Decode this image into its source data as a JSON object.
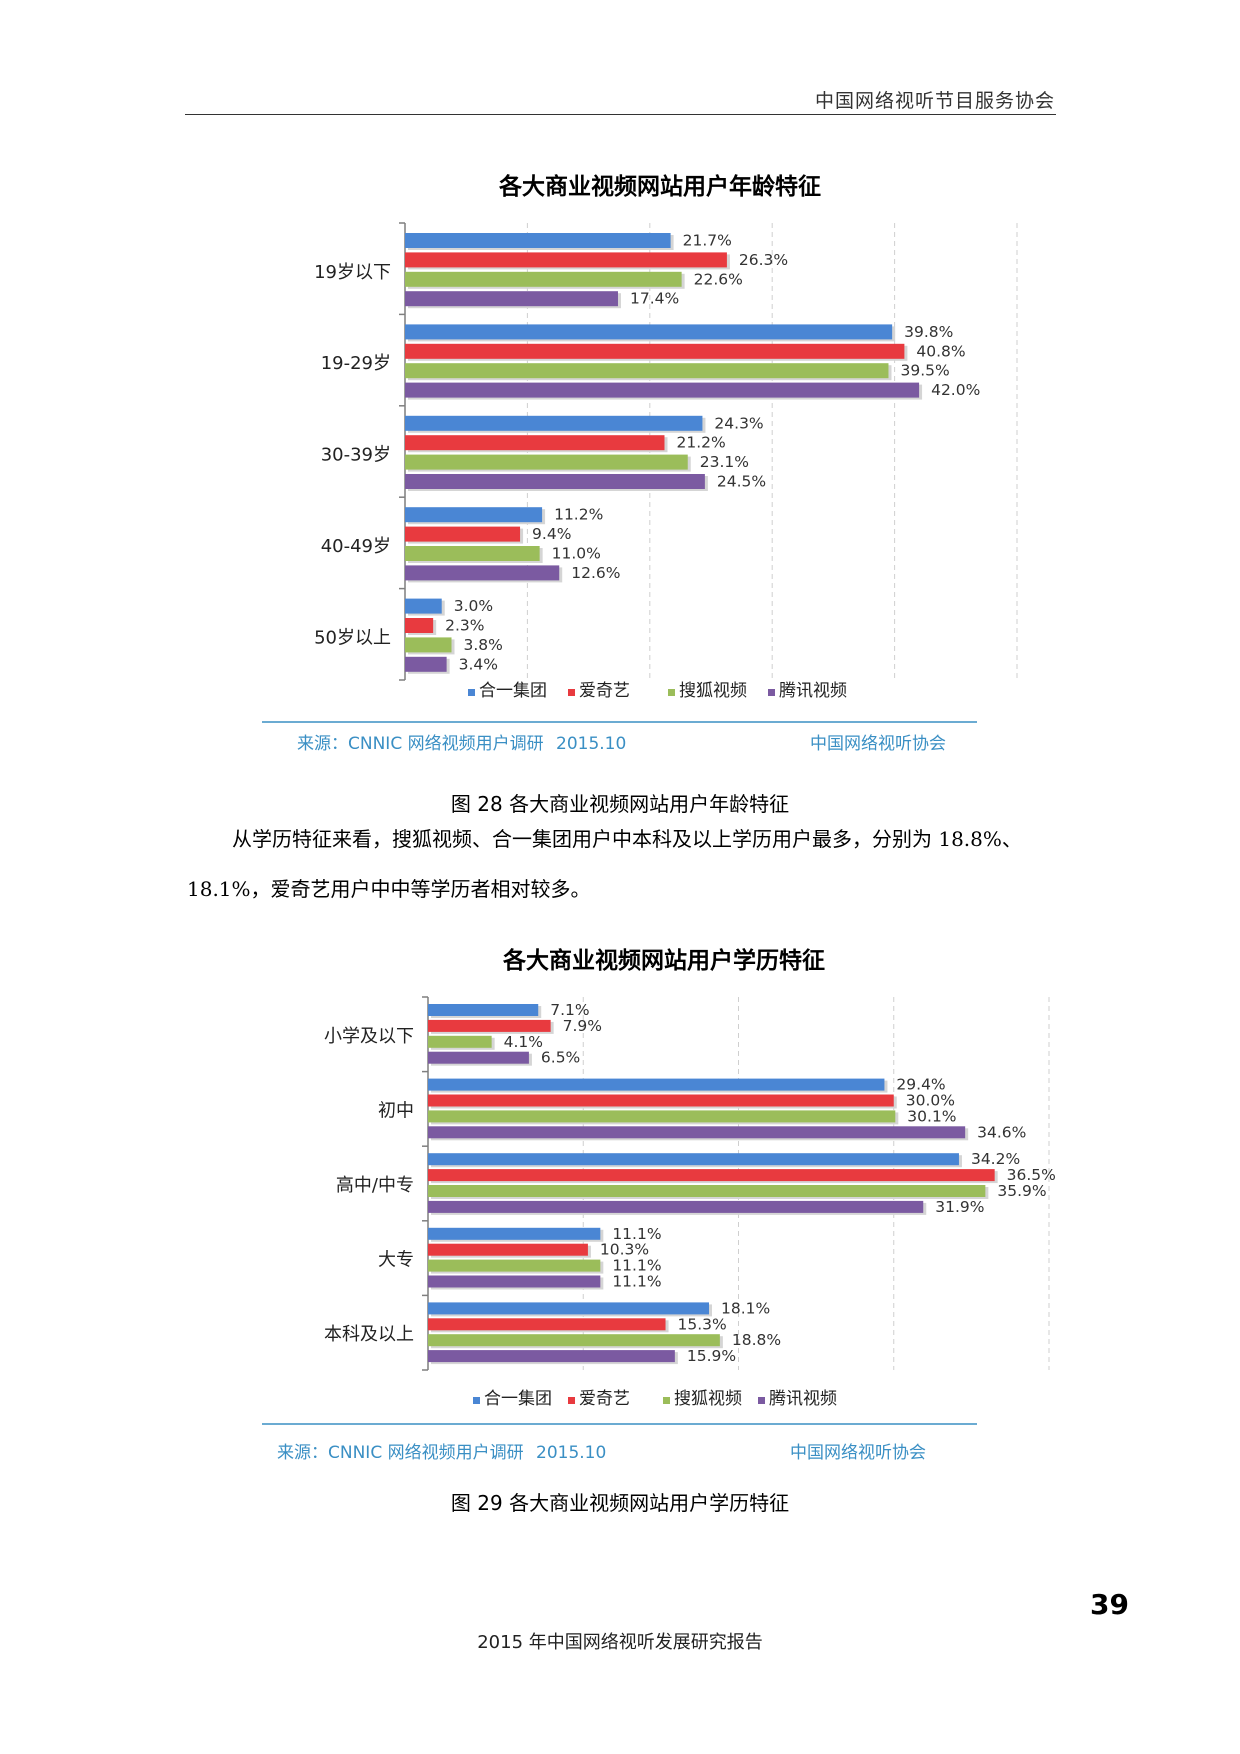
{
  "header": {
    "org": "中国网络视听节目服务协会"
  },
  "charts_meta": {
    "source_label": "来源：CNNIC 网络视频用户调研",
    "source_date": "2015.10",
    "source_org": "中国网络视听协会",
    "colors": {
      "合一集团": "#4a86d4",
      "爱奇艺": "#e83a3f",
      "搜狐视频": "#9bbd5a",
      "腾讯视频": "#7b5aa1"
    }
  },
  "chart_data": [
    {
      "type": "bar",
      "orientation": "horizontal",
      "title": "各大商业视频网站用户年龄特征",
      "categories": [
        "19岁以下",
        "19-29岁",
        "30-39岁",
        "40-49岁",
        "50岁以上"
      ],
      "series": [
        {
          "name": "合一集团",
          "values": [
            21.7,
            39.8,
            24.3,
            11.2,
            3.0
          ],
          "color": "#4a86d4"
        },
        {
          "name": "爱奇艺",
          "values": [
            26.3,
            40.8,
            21.2,
            9.4,
            2.3
          ],
          "color": "#e83a3f"
        },
        {
          "name": "搜狐视频",
          "values": [
            22.6,
            39.5,
            23.1,
            11.0,
            3.8
          ],
          "color": "#9bbd5a"
        },
        {
          "name": "腾讯视频",
          "values": [
            17.4,
            42.0,
            24.5,
            12.6,
            3.4
          ],
          "color": "#7b5aa1"
        }
      ],
      "value_labels": [
        [
          "21.7%",
          "39.8%",
          "24.3%",
          "11.2%",
          "3.0%"
        ],
        [
          "26.3%",
          "40.8%",
          "21.2%",
          "9.4%",
          "2.3%"
        ],
        [
          "22.6%",
          "39.5%",
          "23.1%",
          "11.0%",
          "3.8%"
        ],
        [
          "17.4%",
          "42.0%",
          "24.5%",
          "12.6%",
          "3.4%"
        ]
      ],
      "xlim": [
        0,
        50
      ],
      "grid": true,
      "legend": "bottom"
    },
    {
      "type": "bar",
      "orientation": "horizontal",
      "title": "各大商业视频网站用户学历特征",
      "categories": [
        "小学及以下",
        "初中",
        "高中/中专",
        "大专",
        "本科及以上"
      ],
      "series": [
        {
          "name": "合一集团",
          "values": [
            7.1,
            29.4,
            34.2,
            11.1,
            18.1
          ],
          "color": "#4a86d4"
        },
        {
          "name": "爱奇艺",
          "values": [
            7.9,
            30.0,
            36.5,
            10.3,
            15.3
          ],
          "color": "#e83a3f"
        },
        {
          "name": "搜狐视频",
          "values": [
            4.1,
            30.1,
            35.9,
            11.1,
            18.8
          ],
          "color": "#9bbd5a"
        },
        {
          "name": "腾讯视频",
          "values": [
            6.5,
            34.6,
            31.9,
            11.1,
            15.9
          ],
          "color": "#7b5aa1"
        }
      ],
      "value_labels": [
        [
          "7.1%",
          "29.4%",
          "34.2%",
          "11.1%",
          "18.1%"
        ],
        [
          "7.9%",
          "30.0%",
          "36.5%",
          "10.3%",
          "15.3%"
        ],
        [
          "4.1%",
          "30.1%",
          "35.9%",
          "11.1%",
          "18.8%"
        ],
        [
          "6.5%",
          "34.6%",
          "31.9%",
          "11.1%",
          "15.9%"
        ]
      ],
      "xlim": [
        0,
        40
      ],
      "grid": true,
      "legend": "bottom"
    }
  ],
  "captions": {
    "fig28": "图 28 各大商业视频网站用户年龄特征",
    "fig29": "图 29 各大商业视频网站用户学历特征"
  },
  "body_text": {
    "line1": "从学历特征来看，搜狐视频、合一集团用户中本科及以上学历用户最多，分别为 18.8%、",
    "line2": "18.1%，爱奇艺用户中中等学历者相对较多。"
  },
  "footer": {
    "page_number": "39",
    "report_title": "2015 年中国网络视听发展研究报告"
  }
}
